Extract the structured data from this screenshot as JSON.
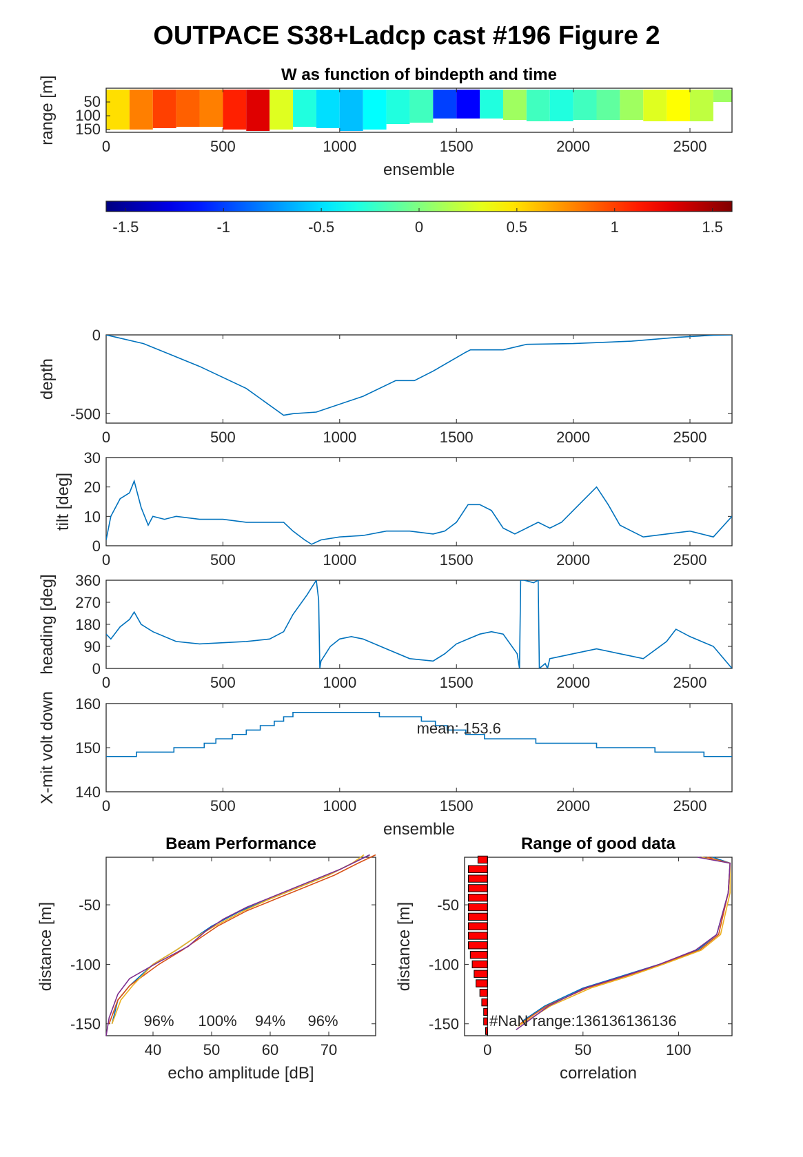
{
  "figure": {
    "title": "OUTPACE S38+Ladcp cast #196 Figure 2"
  },
  "colors": {
    "line": "#0072BD",
    "axes": "#262626",
    "bar": "#ff0000",
    "beam1": "#0072BD",
    "beam2": "#D95319",
    "beam3": "#EDB120",
    "beam4": "#7E2F8E"
  },
  "chart_data": [
    {
      "id": "w_section",
      "type": "heatmap",
      "title": "W as function of bindepth and time",
      "xlabel": "ensemble",
      "ylabel": "range [m]",
      "xlim": [
        0,
        2680
      ],
      "ylim": [
        160,
        0
      ],
      "xticks": [
        "0",
        "500",
        "1000",
        "1500",
        "2000",
        "2500"
      ],
      "yticks": [
        "50",
        "100",
        "150"
      ],
      "colormap": "jet",
      "clim": [
        -1.6,
        1.6
      ],
      "colorbar_ticks": [
        "-1.5",
        "-1",
        "-0.5",
        "0",
        "0.5",
        "1",
        "1.5"
      ],
      "ensemble_centers": [
        50,
        150,
        250,
        350,
        450,
        550,
        650,
        750,
        850,
        950,
        1050,
        1150,
        1250,
        1350,
        1450,
        1550,
        1650,
        1750,
        1850,
        1950,
        2050,
        2150,
        2250,
        2350,
        2450,
        2550,
        2650
      ],
      "w_values": [
        0.5,
        0.8,
        1.0,
        0.9,
        0.8,
        1.1,
        1.3,
        0.3,
        -0.3,
        -0.5,
        -0.6,
        -0.4,
        -0.3,
        -0.2,
        -1.0,
        -1.2,
        -0.3,
        0.1,
        -0.2,
        -0.3,
        -0.2,
        -0.1,
        0.1,
        0.3,
        0.4,
        0.2,
        0.1
      ],
      "max_range_m": [
        150,
        150,
        145,
        140,
        140,
        150,
        155,
        150,
        140,
        145,
        155,
        150,
        130,
        125,
        110,
        110,
        110,
        115,
        120,
        120,
        115,
        115,
        115,
        120,
        120,
        120,
        50
      ]
    },
    {
      "id": "depth",
      "type": "line",
      "xlabel": "",
      "ylabel": "depth",
      "xlim": [
        0,
        2680
      ],
      "ylim": [
        -560,
        0
      ],
      "xticks": [
        "0",
        "500",
        "1000",
        "1500",
        "2000",
        "2500"
      ],
      "yticks": [
        "0",
        "-500"
      ],
      "x": [
        0,
        160,
        400,
        600,
        760,
        800,
        900,
        1100,
        1240,
        1320,
        1400,
        1540,
        1560,
        1700,
        1800,
        2000,
        2250,
        2450,
        2600,
        2680
      ],
      "y": [
        0,
        -55,
        -200,
        -340,
        -510,
        -500,
        -490,
        -390,
        -290,
        -290,
        -230,
        -110,
        -95,
        -95,
        -60,
        -55,
        -40,
        -15,
        -2,
        0
      ]
    },
    {
      "id": "tilt",
      "type": "line",
      "ylabel": "tilt [deg]",
      "xlim": [
        0,
        2680
      ],
      "ylim": [
        0,
        30
      ],
      "xticks": [
        "0",
        "500",
        "1000",
        "1500",
        "2000",
        "2500"
      ],
      "yticks": [
        "0",
        "10",
        "20",
        "30"
      ],
      "x": [
        0,
        20,
        60,
        100,
        120,
        150,
        180,
        200,
        250,
        300,
        400,
        500,
        600,
        700,
        760,
        800,
        850,
        880,
        920,
        1000,
        1100,
        1200,
        1300,
        1400,
        1450,
        1500,
        1550,
        1600,
        1650,
        1700,
        1750,
        1800,
        1850,
        1900,
        1950,
        2000,
        2050,
        2100,
        2150,
        2200,
        2250,
        2300,
        2400,
        2500,
        2600,
        2680
      ],
      "y": [
        2,
        10,
        16,
        18,
        22,
        13,
        7,
        10,
        9,
        10,
        9,
        9,
        8,
        8,
        8,
        5,
        2,
        0.5,
        2,
        3,
        3.5,
        5,
        5,
        4,
        5,
        8,
        14,
        14,
        12,
        6,
        4,
        6,
        8,
        6,
        8,
        12,
        16,
        20,
        14,
        7,
        5,
        3,
        4,
        5,
        3,
        10
      ]
    },
    {
      "id": "heading",
      "type": "line",
      "ylabel": "heading [deg]",
      "xlim": [
        0,
        2680
      ],
      "ylim": [
        0,
        360
      ],
      "xticks": [
        "0",
        "500",
        "1000",
        "1500",
        "2000",
        "2500"
      ],
      "yticks": [
        "0",
        "90",
        "180",
        "270",
        "360"
      ],
      "x": [
        0,
        20,
        60,
        100,
        120,
        150,
        200,
        300,
        400,
        500,
        600,
        700,
        760,
        800,
        860,
        900,
        910,
        915,
        920,
        960,
        1000,
        1050,
        1100,
        1200,
        1300,
        1400,
        1450,
        1500,
        1550,
        1600,
        1650,
        1700,
        1760,
        1770,
        1775,
        1790,
        1830,
        1850,
        1855,
        1880,
        1890,
        1900,
        2000,
        2100,
        2200,
        2300,
        2400,
        2440,
        2500,
        2600,
        2680
      ],
      "y": [
        140,
        120,
        170,
        200,
        230,
        180,
        150,
        110,
        100,
        105,
        110,
        120,
        150,
        220,
        300,
        360,
        280,
        0,
        30,
        90,
        120,
        130,
        120,
        80,
        40,
        30,
        60,
        100,
        120,
        140,
        150,
        140,
        60,
        0,
        360,
        360,
        350,
        360,
        0,
        20,
        0,
        40,
        60,
        80,
        60,
        40,
        110,
        160,
        130,
        90,
        0
      ]
    },
    {
      "id": "xmit_volt",
      "type": "line",
      "ylabel": "X-mit volt down",
      "xlabel": "ensemble",
      "xlim": [
        0,
        2680
      ],
      "ylim": [
        140,
        160
      ],
      "xticks": [
        "0",
        "500",
        "1000",
        "1500",
        "2000",
        "2500"
      ],
      "yticks": [
        "140",
        "150",
        "160"
      ],
      "annotation": "mean: 153.6",
      "x": [
        0,
        130,
        130,
        290,
        290,
        420,
        420,
        470,
        470,
        540,
        540,
        600,
        600,
        660,
        660,
        720,
        720,
        760,
        760,
        800,
        800,
        880,
        880,
        1170,
        1170,
        1350,
        1350,
        1410,
        1410,
        1460,
        1460,
        1540,
        1540,
        1620,
        1620,
        1840,
        1840,
        2100,
        2100,
        2350,
        2350,
        2560,
        2560,
        2680
      ],
      "y": [
        148,
        148,
        149,
        149,
        150,
        150,
        151,
        151,
        152,
        152,
        153,
        153,
        154,
        154,
        155,
        155,
        156,
        156,
        157,
        157,
        158,
        158,
        158,
        158,
        157,
        157,
        156,
        156,
        155,
        155,
        154,
        154,
        153,
        153,
        152,
        152,
        151,
        151,
        150,
        150,
        149,
        149,
        148,
        148
      ]
    },
    {
      "id": "beam_performance",
      "type": "line",
      "title": "Beam Performance",
      "xlabel": "echo amplitude [dB]",
      "ylabel": "distance [m]",
      "xlim": [
        32,
        78
      ],
      "ylim": [
        -160,
        -10
      ],
      "xticks": [
        "40",
        "50",
        "60",
        "70"
      ],
      "yticks": [
        "-50",
        "-100",
        "-150"
      ],
      "annotations": [
        "96%",
        "100%",
        "94%",
        "96%"
      ],
      "annotation_x": [
        41,
        51,
        60,
        69
      ],
      "series": [
        {
          "values_x": [
            33,
            34,
            36,
            40,
            44,
            47,
            50,
            55,
            60,
            65,
            70,
            74,
            77
          ],
          "values_y": [
            -150,
            -130,
            -118,
            -100,
            -88,
            -78,
            -68,
            -55,
            -45,
            -35,
            -25,
            -15,
            -8
          ]
        },
        {
          "values_x": [
            32.5,
            34,
            36,
            41,
            45,
            48,
            51,
            56,
            61,
            66,
            71,
            75,
            78
          ],
          "values_y": [
            -150,
            -130,
            -118,
            -100,
            -88,
            -78,
            -68,
            -55,
            -45,
            -35,
            -25,
            -15,
            -8
          ]
        },
        {
          "values_x": [
            33,
            34.5,
            36.5,
            40,
            44,
            47,
            50.5,
            55.5,
            60,
            65,
            70,
            74,
            76
          ],
          "values_y": [
            -150,
            -130,
            -118,
            -100,
            -88,
            -78,
            -68,
            -55,
            -45,
            -35,
            -25,
            -15,
            -8
          ]
        },
        {
          "values_x": [
            32,
            32.5,
            34,
            36,
            41,
            46,
            49,
            52,
            56,
            61,
            67,
            72,
            77
          ],
          "values_y": [
            -160,
            -145,
            -125,
            -112,
            -98,
            -85,
            -72,
            -62,
            -52,
            -42,
            -30,
            -20,
            -8
          ]
        }
      ]
    },
    {
      "id": "range_good_data",
      "type": "bar",
      "title": "Range of good data",
      "xlabel": "correlation",
      "ylabel": "distance [m]",
      "xlim": [
        -12,
        128
      ],
      "ylim": [
        -160,
        -10
      ],
      "xticks": [
        "0",
        "50",
        "100"
      ],
      "yticks": [
        "-50",
        "-100",
        "-150"
      ],
      "annotation": "#NaN range:136136136136",
      "bars_y": [
        -12,
        -20,
        -28,
        -36,
        -44,
        -52,
        -60,
        -68,
        -76,
        -84,
        -92,
        -100,
        -108,
        -116,
        -124,
        -132,
        -140,
        -148,
        -156
      ],
      "bars_value": [
        5,
        10,
        10,
        10,
        10,
        10,
        10,
        10,
        10,
        10,
        9,
        8,
        7,
        6,
        4,
        3,
        2,
        2,
        1
      ],
      "series": [
        {
          "values_x": [
            118,
            127,
            126,
            120,
            110,
            90,
            70,
            50,
            30,
            18
          ],
          "values_y": [
            -10,
            -15,
            -40,
            -75,
            -88,
            -100,
            -110,
            -120,
            -135,
            -148
          ]
        },
        {
          "values_x": [
            115,
            127,
            126,
            121,
            111,
            91,
            72,
            52,
            31,
            17
          ],
          "values_y": [
            -10,
            -15,
            -40,
            -75,
            -88,
            -100,
            -110,
            -120,
            -135,
            -150
          ]
        },
        {
          "values_x": [
            112,
            127,
            127,
            122,
            112,
            92,
            74,
            54,
            33,
            16
          ],
          "values_y": [
            -10,
            -15,
            -40,
            -75,
            -88,
            -100,
            -110,
            -120,
            -135,
            -152
          ]
        },
        {
          "values_x": [
            110,
            127,
            126,
            120,
            109,
            90,
            71,
            51,
            32,
            15
          ],
          "values_y": [
            -10,
            -15,
            -40,
            -75,
            -88,
            -100,
            -110,
            -120,
            -135,
            -155
          ]
        }
      ]
    }
  ]
}
